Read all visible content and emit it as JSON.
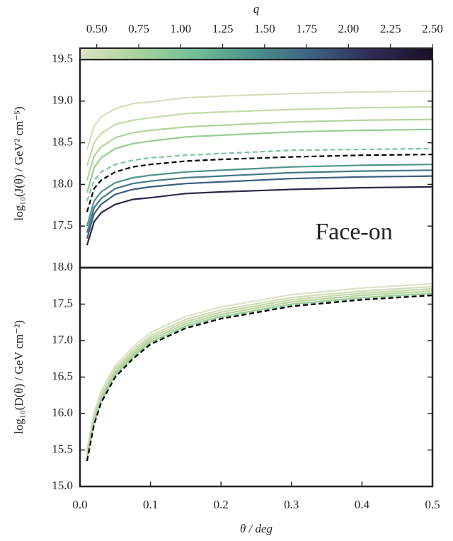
{
  "chart_data": [
    {
      "type": "line",
      "ylabel": "log₁₀(J(θ) / GeV² cm⁻⁵)",
      "annotation": "Face-on",
      "colorbar": {
        "label": "q",
        "lim": [
          0.4,
          2.5
        ],
        "ticks": [
          {
            "value": 0.5,
            "label": "0.50"
          },
          0.75,
          {
            "value": 1.0,
            "label": "1.00"
          },
          1.25,
          {
            "value": 1.5,
            "label": "1.50"
          },
          1.75,
          {
            "value": 2.0,
            "label": "2.00"
          },
          2.25,
          {
            "value": 2.5,
            "label": "2.50"
          }
        ],
        "colors": [
          "#dde2c2",
          "#a8d39b",
          "#6fbd98",
          "#4a8f8a",
          "#3d5d7f",
          "#2e2a55",
          "#1c0f26"
        ]
      },
      "xlim": [
        0,
        0.5
      ],
      "ylim": [
        17.0,
        19.5
      ],
      "yticks": [
        17.5,
        {
          "value": 18.0,
          "label": "18.0"
        },
        18.5,
        {
          "value": 19.0,
          "label": "19.0"
        },
        19.5
      ],
      "x": [
        0.01,
        0.02,
        0.03,
        0.05,
        0.075,
        0.1,
        0.15,
        0.2,
        0.3,
        0.4,
        0.5
      ],
      "series": [
        {
          "color": "#d6dfbb",
          "linestyle": "solid",
          "values": [
            18.42,
            18.7,
            18.81,
            18.91,
            18.97,
            18.99,
            19.04,
            19.06,
            19.09,
            19.11,
            19.12
          ]
        },
        {
          "color": "#c3dcaa",
          "linestyle": "solid",
          "values": [
            18.22,
            18.5,
            18.61,
            18.72,
            18.77,
            18.8,
            18.85,
            18.87,
            18.9,
            18.92,
            18.93
          ]
        },
        {
          "color": "#aed59c",
          "linestyle": "solid",
          "values": [
            18.05,
            18.34,
            18.45,
            18.56,
            18.62,
            18.65,
            18.69,
            18.71,
            18.75,
            18.77,
            18.78
          ]
        },
        {
          "color": "#98cc94",
          "linestyle": "solid",
          "values": [
            17.9,
            18.2,
            18.32,
            18.43,
            18.49,
            18.52,
            18.57,
            18.59,
            18.63,
            18.65,
            18.66
          ]
        },
        {
          "color": "#7fc49a",
          "linestyle": "dashed",
          "values": [
            17.8,
            18.05,
            18.15,
            18.24,
            18.29,
            18.32,
            18.35,
            18.37,
            18.41,
            18.42,
            18.43
          ]
        },
        {
          "color": "#000000",
          "linestyle": "dashed",
          "values": [
            17.67,
            17.95,
            18.05,
            18.15,
            18.21,
            18.24,
            18.28,
            18.3,
            18.33,
            18.35,
            18.36
          ]
        },
        {
          "color": "#4f948a",
          "linestyle": "solid",
          "values": [
            17.5,
            17.8,
            17.91,
            18.02,
            18.08,
            18.11,
            18.15,
            18.17,
            18.21,
            18.23,
            18.24
          ]
        },
        {
          "color": "#437a86",
          "linestyle": "solid",
          "values": [
            17.42,
            17.72,
            17.83,
            17.95,
            18.01,
            18.04,
            18.08,
            18.1,
            18.14,
            18.16,
            18.17
          ]
        },
        {
          "color": "#3d5d7f",
          "linestyle": "solid",
          "values": [
            17.35,
            17.65,
            17.76,
            17.88,
            17.94,
            17.97,
            18.01,
            18.03,
            18.07,
            18.09,
            18.1
          ]
        },
        {
          "color": "#2e2547",
          "linestyle": "solid",
          "values": [
            17.27,
            17.55,
            17.66,
            17.76,
            17.82,
            17.84,
            17.89,
            17.91,
            17.94,
            17.96,
            17.97
          ]
        }
      ]
    },
    {
      "type": "line",
      "ylabel": "log₁₀(D(θ) / GeV cm⁻²)",
      "xlabel": "θ / deg",
      "xlim": [
        0,
        0.5
      ],
      "ylim": [
        15.0,
        18.0
      ],
      "xticks": [
        {
          "value": 0.0,
          "label": "0.0"
        },
        0.1,
        0.2,
        0.3,
        0.4,
        0.5
      ],
      "yticks": [
        {
          "value": 15.0,
          "label": "15.0"
        },
        15.5,
        {
          "value": 16.0,
          "label": "16.0"
        },
        16.5,
        {
          "value": 17.0,
          "label": "17.0"
        },
        17.5,
        {
          "value": 18.0,
          "label": "18.0"
        }
      ],
      "x": [
        0.01,
        0.02,
        0.03,
        0.05,
        0.075,
        0.1,
        0.15,
        0.2,
        0.3,
        0.4,
        0.5
      ],
      "series": [
        {
          "color": "#dce2c6",
          "linestyle": "solid",
          "values": [
            15.51,
            16.01,
            16.31,
            16.66,
            16.91,
            17.11,
            17.33,
            17.46,
            17.63,
            17.72,
            17.78
          ]
        },
        {
          "color": "#d0dcb6",
          "linestyle": "solid",
          "values": [
            15.47,
            15.97,
            16.27,
            16.62,
            16.87,
            17.07,
            17.29,
            17.42,
            17.59,
            17.68,
            17.74
          ]
        },
        {
          "color": "#c3d9a8",
          "linestyle": "solid",
          "values": [
            15.44,
            15.94,
            16.24,
            16.59,
            16.84,
            17.04,
            17.26,
            17.39,
            17.56,
            17.65,
            17.71
          ]
        },
        {
          "color": "#b6d49f",
          "linestyle": "solid",
          "values": [
            15.41,
            15.91,
            16.21,
            16.56,
            16.81,
            17.01,
            17.23,
            17.36,
            17.53,
            17.62,
            17.68
          ]
        },
        {
          "color": "#a6cf98",
          "linestyle": "solid",
          "values": [
            15.38,
            15.88,
            16.18,
            16.53,
            16.78,
            16.98,
            17.2,
            17.33,
            17.5,
            17.59,
            17.65
          ]
        },
        {
          "color": "#8cc8a0",
          "linestyle": "dashed",
          "values": [
            15.37,
            15.87,
            16.17,
            16.52,
            16.77,
            16.97,
            17.19,
            17.32,
            17.49,
            17.58,
            17.64
          ]
        },
        {
          "color": "#000000",
          "linestyle": "dashed",
          "values": [
            15.35,
            15.85,
            16.15,
            16.5,
            16.75,
            16.95,
            17.17,
            17.3,
            17.47,
            17.56,
            17.62
          ]
        }
      ]
    }
  ]
}
